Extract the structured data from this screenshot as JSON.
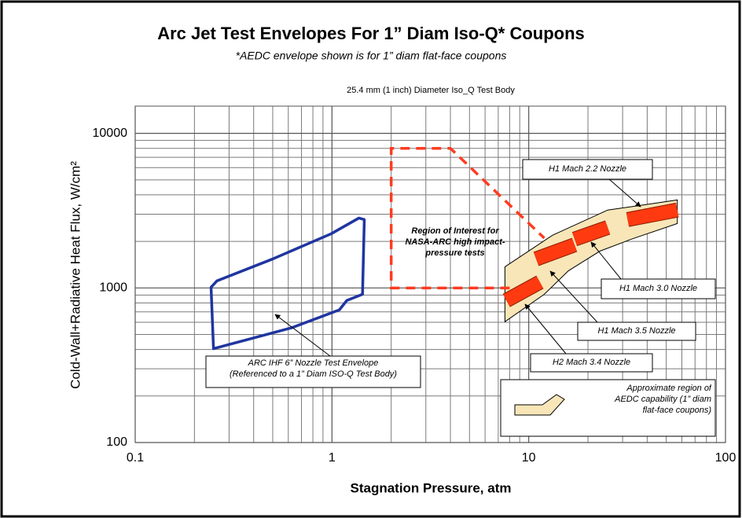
{
  "chart_data": {
    "type": "line",
    "title": "Arc Jet Test Envelopes For 1” Diam Iso-Q* Coupons",
    "subtitle": "*AEDC envelope shown is for 1” diam flat-face coupons",
    "plot_title": "25.4 mm (1 inch) Diameter Iso_Q Test Body",
    "x_label": "Stagnation Pressure, atm",
    "y_label": "Cold-Wall+Radiative Heat Flux, W/cm²",
    "x_log": true,
    "y_log": true,
    "grid": true,
    "minor_grid": true,
    "xlim": [
      0.1,
      100
    ],
    "xticks": [
      0.1,
      1,
      10,
      100
    ],
    "ylim": [
      100,
      15000
    ],
    "yticks": [
      100,
      1000,
      10000
    ],
    "series": [
      {
        "name": "ARC IHF 6” Nozzle Test Envelope\n(Referenced to a 1” Diam ISO-Q Test Body)",
        "color": "#1f35a0",
        "style": "outline",
        "x": [
          0.243,
          0.25,
          0.62,
          1.09,
          1.19,
          1.43,
          1.46,
          1.37,
          0.99,
          0.5,
          0.26
        ],
        "y": [
          1010,
          405,
          551,
          721,
          830,
          910,
          2770,
          2830,
          2240,
          1540,
          1110
        ]
      },
      {
        "name": "Region of Interest for\nNASA-ARC high impact-\npressure tests",
        "color": "#ff3b1f",
        "style": "dashed",
        "x": [
          8,
          2,
          2,
          4,
          12
        ],
        "y": [
          1000,
          1000,
          8000,
          8000,
          2100
        ]
      },
      {
        "name": "Approximate region of\nAEDC capability (1” diam\nflat-face coupons)",
        "color": "#f8e6b8",
        "style": "filled",
        "x": [
          7.57,
          13.2,
          25.2,
          36.5,
          56.9,
          56.9,
          33.3,
          23,
          15.9,
          12,
          7.57
        ],
        "y": [
          1370,
          2190,
          3190,
          3410,
          3710,
          2610,
          2070,
          1730,
          1290,
          910,
          605
        ]
      },
      {
        "name": "H1 Mach 2.2 Nozzle",
        "color": "#ff3a10",
        "style": "band",
        "x": [
          31.8,
          56.9
        ],
        "y": [
          2770,
          3190
        ]
      },
      {
        "name": "H1 Mach 3.0 Nozzle",
        "color": "#ff3a10",
        "style": "band",
        "x": [
          17.1,
          25.2
        ],
        "y": [
          2070,
          2460
        ]
      },
      {
        "name": "H1 Mach 3.5 Nozzle",
        "color": "#ff3a10",
        "style": "band",
        "x": [
          10.9,
          17.1
        ],
        "y": [
          1540,
          1900
        ]
      },
      {
        "name": "H2 Mach 3.4 Nozzle",
        "color": "#ff3a10",
        "style": "band",
        "x": [
          7.7,
          11.4
        ],
        "y": [
          830,
          1090
        ]
      }
    ]
  }
}
